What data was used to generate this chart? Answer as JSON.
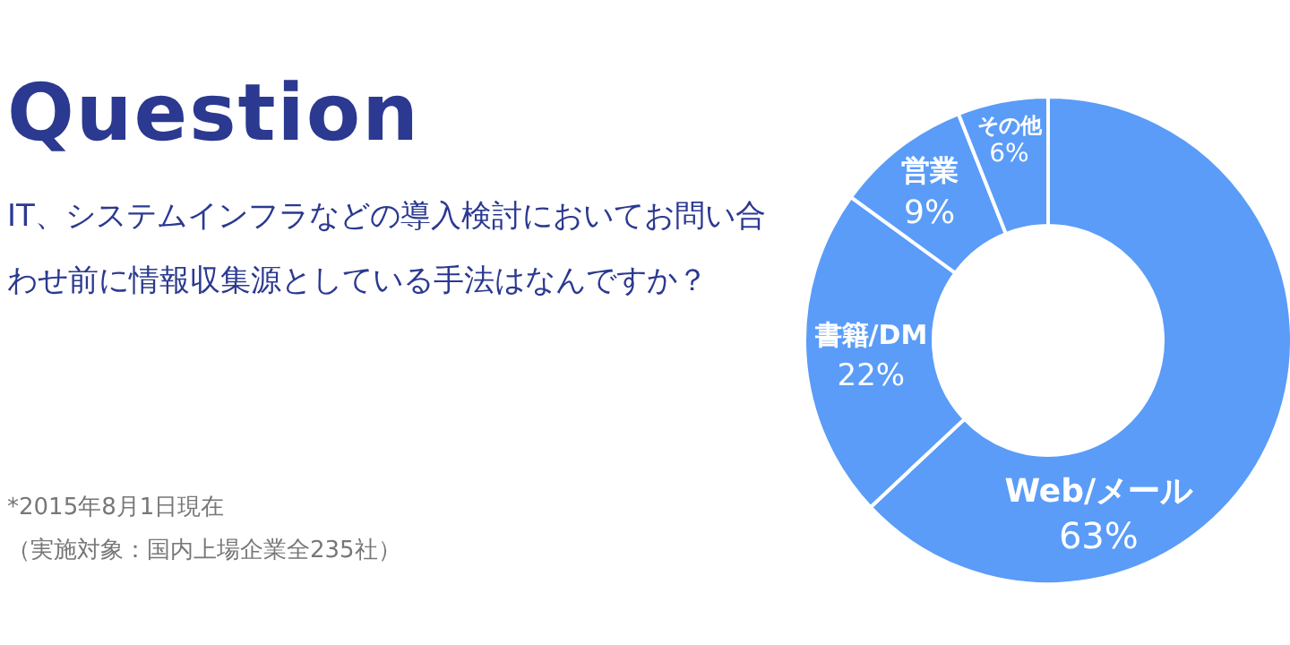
{
  "chart_data": {
    "type": "donut",
    "title": "Question",
    "subtitle": "IT、システムインフラなどの導入検討においてお問い合わせ前に情報収集源としている手法はなんですか？",
    "categories": [
      "Web/メール",
      "書籍/DM",
      "営業",
      "その他"
    ],
    "values": [
      63,
      22,
      9,
      6
    ],
    "colors": [
      "#5a9cf8",
      "#5a9cf8",
      "#5a9cf8",
      "#5a9cf8"
    ],
    "value_labels": [
      "63%",
      "22%",
      "9%",
      "6%"
    ],
    "annotations": [
      "*2015年8月1日現在",
      "（実施対象：国内上場企業全235社）"
    ]
  }
}
